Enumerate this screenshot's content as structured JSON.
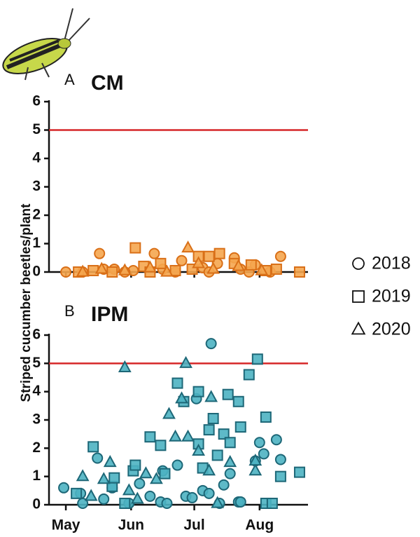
{
  "chart_data": [
    {
      "type": "scatter",
      "panel": "A",
      "title": "CM",
      "ylabel": "Striped cucumber beetles/plant",
      "xlim": [
        -8,
        115
      ],
      "ylim": [
        0,
        6
      ],
      "yticks": [
        0,
        1,
        2,
        3,
        4,
        5,
        6
      ],
      "threshold": 5,
      "threshold_color": "#d62728",
      "fill": "#f5a64f",
      "stroke": "#d96f17",
      "series": [
        {
          "name": "2018",
          "marker": "circle",
          "x": [
            0,
            16,
            18,
            23,
            32,
            42,
            46,
            55,
            65,
            72,
            80,
            83,
            90,
            102,
            8,
            28,
            52,
            68,
            87,
            97
          ],
          "values": [
            0,
            0.65,
            0.1,
            0.1,
            0.05,
            0.65,
            0.1,
            0.4,
            0.15,
            0.3,
            0.5,
            0.1,
            0.25,
            0.55,
            0,
            0,
            0,
            0,
            0,
            0
          ]
        },
        {
          "name": "2019",
          "marker": "square",
          "x": [
            6,
            13,
            33,
            37,
            45,
            63,
            68,
            73,
            80,
            88,
            100,
            111,
            22,
            40,
            52,
            60,
            95
          ],
          "values": [
            0,
            0.05,
            0.85,
            0.2,
            0.3,
            0.55,
            0.55,
            0.65,
            0.3,
            0.25,
            0.1,
            0,
            0,
            0,
            0.05,
            0.1,
            0.05
          ]
        },
        {
          "name": "2020",
          "marker": "triangle",
          "x": [
            17,
            28,
            40,
            58,
            63,
            70,
            82,
            93,
            8,
            48
          ],
          "values": [
            0.1,
            0.05,
            0.15,
            0.85,
            0.3,
            0.1,
            0.2,
            0.05,
            0,
            0
          ]
        }
      ]
    },
    {
      "type": "scatter",
      "panel": "B",
      "title": "IPM",
      "xlim": [
        -8,
        115
      ],
      "ylim": [
        0,
        6
      ],
      "yticks": [
        0,
        1,
        2,
        3,
        4,
        5,
        6
      ],
      "threshold": 5,
      "threshold_color": "#d62728",
      "xticks": [
        {
          "value": 0,
          "label": "May"
        },
        {
          "value": 31,
          "label": "Jun"
        },
        {
          "value": 61,
          "label": "Jul"
        },
        {
          "value": 92,
          "label": "Aug"
        }
      ],
      "fill": "#4cb2c2",
      "stroke": "#1d6777",
      "series": [
        {
          "marker": "circle",
          "x": [
            -1,
            7,
            8,
            15,
            18,
            22,
            30,
            35,
            40,
            45,
            48,
            53,
            57,
            62,
            65,
            68,
            69,
            73,
            75,
            78,
            82,
            83,
            90,
            92,
            94,
            100,
            102,
            60,
            46
          ],
          "values": [
            0.6,
            0.4,
            0.05,
            1.65,
            0.2,
            0.6,
            0.05,
            0.75,
            0.3,
            0.1,
            0.05,
            1.4,
            0.3,
            3.75,
            0.5,
            0.4,
            5.7,
            0.05,
            0.7,
            1.1,
            0.1,
            0.1,
            1.55,
            2.2,
            1.8,
            2.3,
            1.6,
            0.25,
            1.2
          ]
        },
        {
          "marker": "square",
          "x": [
            5,
            13,
            22,
            23,
            32,
            33,
            40,
            45,
            47,
            56,
            53,
            63,
            65,
            63,
            68,
            70,
            72,
            75,
            77,
            78,
            83,
            82,
            87,
            91,
            95,
            95,
            98,
            102,
            111,
            28
          ],
          "values": [
            0.4,
            2.05,
            0.65,
            0.95,
            1.2,
            1.4,
            2.4,
            2.1,
            1.1,
            3.65,
            4.3,
            2.15,
            1.3,
            4.0,
            2.65,
            3.05,
            1.75,
            2.5,
            3.9,
            2.2,
            2.75,
            3.65,
            4.6,
            5.15,
            3.1,
            0.05,
            0.05,
            1.0,
            1.15,
            0.05
          ]
        },
        {
          "marker": "triangle",
          "x": [
            8,
            12,
            18,
            21,
            28,
            30,
            38,
            43,
            49,
            52,
            55,
            57,
            58,
            63,
            68,
            69,
            72,
            78,
            90,
            90,
            34
          ],
          "values": [
            1.0,
            0.3,
            0.9,
            1.5,
            4.85,
            0.5,
            1.1,
            0.9,
            3.2,
            2.4,
            3.75,
            5.0,
            2.4,
            1.9,
            1.2,
            3.8,
            0.05,
            1.5,
            1.2,
            1.55,
            0.2
          ]
        }
      ]
    }
  ]
}
